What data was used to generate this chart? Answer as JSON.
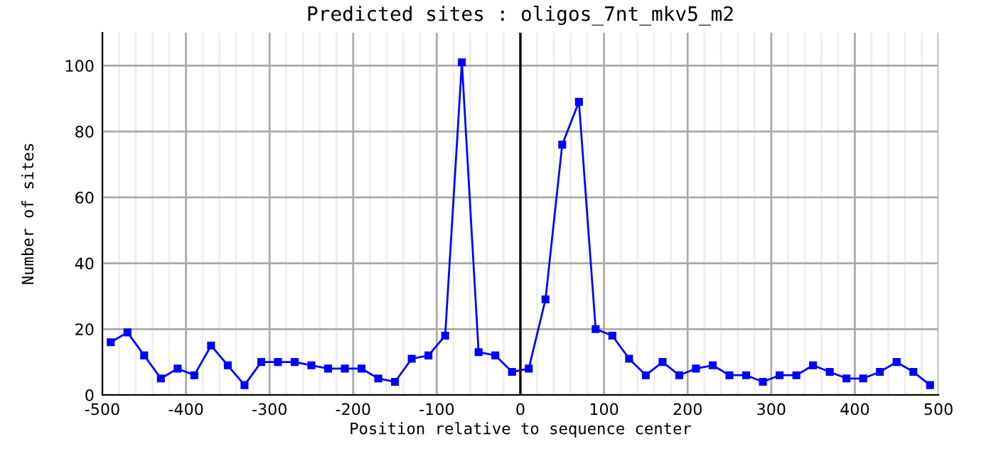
{
  "chart_data": {
    "type": "line",
    "title": "Predicted sites : oligos_7nt_mkv5_m2",
    "xlabel": "Position relative to sequence center",
    "ylabel": "Number of sites",
    "x": [
      -490,
      -470,
      -450,
      -430,
      -410,
      -390,
      -370,
      -350,
      -330,
      -310,
      -290,
      -270,
      -250,
      -230,
      -210,
      -190,
      -170,
      -150,
      -130,
      -110,
      -90,
      -70,
      -50,
      -30,
      -10,
      10,
      30,
      50,
      70,
      90,
      110,
      130,
      150,
      170,
      190,
      210,
      230,
      250,
      270,
      290,
      310,
      330,
      350,
      370,
      390,
      410,
      430,
      450,
      470,
      490
    ],
    "series": [
      {
        "color": "#0000ff",
        "values": [
          16,
          19,
          12,
          5,
          8,
          6,
          15,
          9,
          3,
          10,
          10,
          10,
          9,
          8,
          8,
          8,
          5,
          4,
          11,
          12,
          18,
          101,
          13,
          12,
          7,
          8,
          29,
          76,
          89,
          20,
          18,
          11,
          6,
          10,
          6,
          8,
          9,
          6,
          6,
          4,
          6,
          6,
          9,
          7,
          5,
          5,
          7,
          10,
          7,
          3
        ]
      }
    ],
    "xlim": [
      -500,
      500
    ],
    "ylim": [
      0,
      110
    ],
    "xticks": [
      -500,
      {
        "value": -480,
        "label": null
      },
      {
        "value": -460,
        "label": null
      },
      {
        "value": -440,
        "label": null
      },
      {
        "value": -420,
        "label": null
      },
      -400,
      {
        "value": -380,
        "label": null
      },
      {
        "value": -360,
        "label": null
      },
      {
        "value": -340,
        "label": null
      },
      {
        "value": -320,
        "label": null
      },
      -300,
      {
        "value": -280,
        "label": null
      },
      {
        "value": -260,
        "label": null
      },
      {
        "value": -240,
        "label": null
      },
      {
        "value": -220,
        "label": null
      },
      -200,
      {
        "value": -180,
        "label": null
      },
      {
        "value": -160,
        "label": null
      },
      {
        "value": -140,
        "label": null
      },
      {
        "value": -120,
        "label": null
      },
      -100,
      {
        "value": -80,
        "label": null
      },
      {
        "value": -60,
        "label": null
      },
      {
        "value": -40,
        "label": null
      },
      {
        "value": -20,
        "label": null
      },
      0,
      {
        "value": 20,
        "label": null
      },
      {
        "value": 40,
        "label": null
      },
      {
        "value": 60,
        "label": null
      },
      {
        "value": 80,
        "label": null
      },
      100,
      {
        "value": 120,
        "label": null
      },
      {
        "value": 140,
        "label": null
      },
      {
        "value": 160,
        "label": null
      },
      {
        "value": 180,
        "label": null
      },
      200,
      {
        "value": 220,
        "label": null
      },
      {
        "value": 240,
        "label": null
      },
      {
        "value": 260,
        "label": null
      },
      {
        "value": 280,
        "label": null
      },
      300,
      {
        "value": 320,
        "label": null
      },
      {
        "value": 340,
        "label": null
      },
      {
        "value": 360,
        "label": null
      },
      {
        "value": 380,
        "label": null
      },
      400,
      {
        "value": 420,
        "label": null
      },
      {
        "value": 440,
        "label": null
      },
      {
        "value": 460,
        "label": null
      },
      {
        "value": 480,
        "label": null
      },
      500
    ],
    "yticks": [
      0,
      20,
      40,
      60,
      80,
      100
    ],
    "ref_lines": [
      {
        "axis": "x",
        "value": 0,
        "color": "#000000"
      }
    ],
    "grid": true,
    "marker": "square",
    "line_style": "solid",
    "legend": false
  }
}
